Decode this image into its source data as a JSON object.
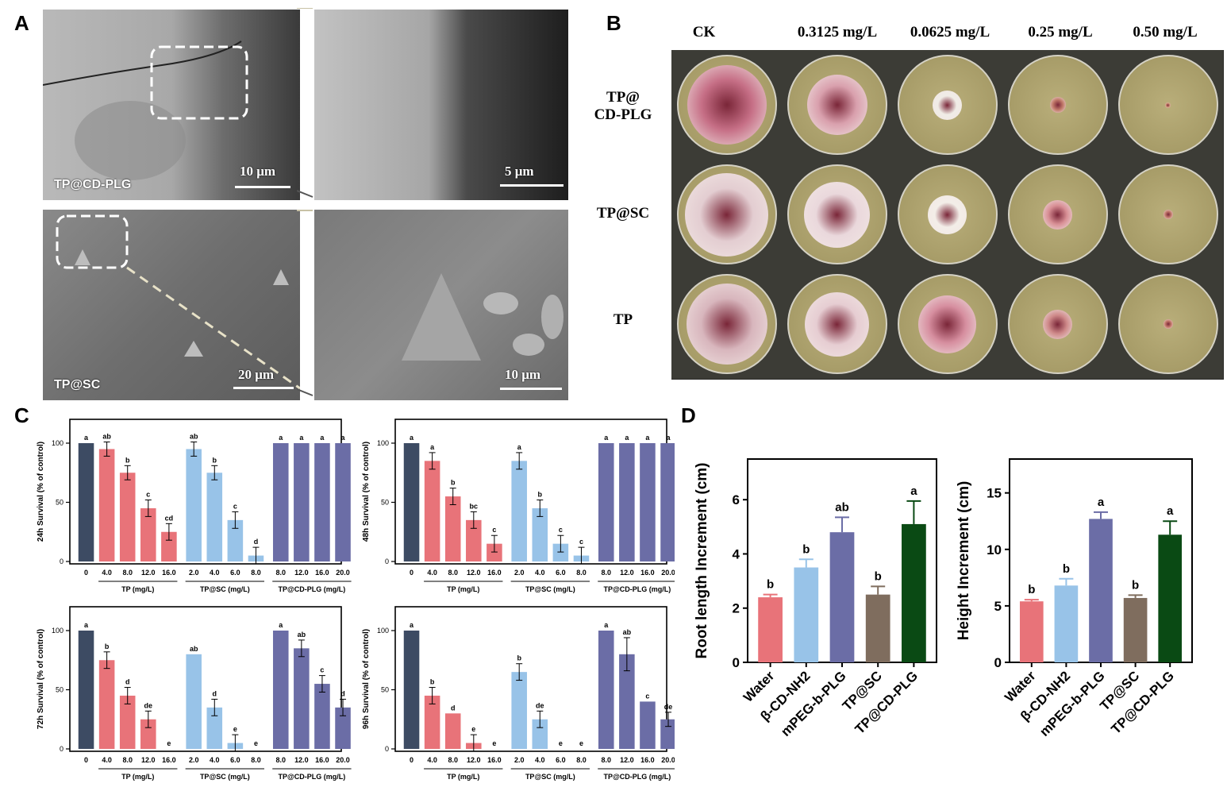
{
  "panels": {
    "a": "A",
    "b": "B",
    "c": "C",
    "d": "D"
  },
  "panel_a": {
    "top_label": "TP@CD-PLG",
    "bottom_label": "TP@SC",
    "scale_top_left": "10 μm",
    "scale_top_right": "5 μm",
    "scale_bottom_left": "20 μm",
    "scale_bottom_right": "10 μm"
  },
  "panel_b": {
    "columns": [
      "CK",
      "0.3125 mg/L",
      "0.0625 mg/L",
      "0.25 mg/L",
      "0.50 mg/L"
    ],
    "rows": [
      {
        "line1": "TP@",
        "line2": "CD-PLG"
      },
      {
        "line1": "TP@SC",
        "line2": ""
      },
      {
        "line1": "TP",
        "line2": ""
      }
    ],
    "colony_diameters": [
      [
        0.82,
        0.62,
        0.3,
        0.16,
        0.06
      ],
      [
        0.86,
        0.68,
        0.4,
        0.3,
        0.1
      ],
      [
        0.84,
        0.66,
        0.6,
        0.3,
        0.1
      ]
    ],
    "colony_colors": [
      [
        "#c66f86",
        "#d9a0ad",
        "#f0ece6",
        "#c27a6a",
        "#c88a6e"
      ],
      [
        "#e3cdd1",
        "#ead8dc",
        "#f3eee8",
        "#d88f95",
        "#c37d6e"
      ],
      [
        "#d8b6bd",
        "#e6cdd2",
        "#d68e9f",
        "#cf8a8a",
        "#c47a6b"
      ]
    ]
  },
  "panel_c": {
    "colors": {
      "control": "#3d4b63",
      "tp": "#e87379",
      "sc": "#98c3e8",
      "cdplg": "#6b6da6"
    },
    "group_labels": [
      "TP (mg/L)",
      "TP@SC (mg/L)",
      "TP@CD-PLG (mg/L)"
    ],
    "tick_labels": [
      "0",
      "4.0",
      "8.0",
      "12.0",
      "16.0",
      "2.0",
      "4.0",
      "6.0",
      "8.0",
      "8.0",
      "12.0",
      "16.0",
      "20.0"
    ],
    "plots": [
      {
        "ylabel": "24h Survival (% of control)",
        "values": [
          100,
          95,
          75,
          45,
          25,
          95,
          75,
          35,
          5,
          100,
          100,
          100,
          100
        ],
        "errors": [
          0,
          6,
          6,
          7,
          7,
          6,
          6,
          7,
          7,
          0,
          0,
          0,
          0
        ],
        "letters": [
          "a",
          "ab",
          "b",
          "c",
          "cd",
          "ab",
          "b",
          "c",
          "d",
          "a",
          "a",
          "a",
          "a"
        ]
      },
      {
        "ylabel": "48h Survival (% of control)",
        "values": [
          100,
          85,
          55,
          35,
          15,
          85,
          45,
          15,
          5,
          100,
          100,
          100,
          100
        ],
        "errors": [
          0,
          7,
          7,
          7,
          7,
          7,
          7,
          7,
          7,
          0,
          0,
          0,
          0
        ],
        "letters": [
          "a",
          "a",
          "b",
          "bc",
          "c",
          "a",
          "b",
          "c",
          "c",
          "a",
          "a",
          "a",
          "a"
        ]
      },
      {
        "ylabel": "72h Survival (% of control)",
        "values": [
          100,
          75,
          45,
          25,
          0,
          80,
          35,
          5,
          0,
          100,
          85,
          55,
          35
        ],
        "errors": [
          0,
          7,
          7,
          7,
          0,
          0,
          7,
          7,
          0,
          0,
          7,
          7,
          7
        ],
        "letters": [
          "a",
          "b",
          "d",
          "de",
          "e",
          "ab",
          "d",
          "e",
          "e",
          "a",
          "ab",
          "c",
          "d"
        ]
      },
      {
        "ylabel": "96h Survival (% of control)",
        "values": [
          100,
          45,
          30,
          5,
          0,
          65,
          25,
          0,
          0,
          100,
          80,
          40,
          25
        ],
        "errors": [
          0,
          7,
          0,
          7,
          0,
          7,
          7,
          0,
          0,
          0,
          14,
          0,
          6
        ],
        "letters": [
          "a",
          "b",
          "d",
          "e",
          "e",
          "b",
          "de",
          "e",
          "e",
          "a",
          "ab",
          "c",
          "de"
        ]
      }
    ],
    "yticks": [
      "0",
      "50",
      "100"
    ]
  },
  "chart_data": [
    {
      "type": "bar",
      "ylabel": "Root length Increment (cm)",
      "categories": [
        "Water",
        "β-CD-NH2",
        "mPEG-b-PLG",
        "TP@SC",
        "TP@CD-PLG"
      ],
      "values": [
        2.4,
        3.5,
        4.8,
        2.5,
        5.1
      ],
      "errors": [
        0.1,
        0.3,
        0.55,
        0.3,
        0.85
      ],
      "letters": [
        "b",
        "b",
        "ab",
        "b",
        "a"
      ],
      "ylim": [
        0,
        7.5
      ],
      "yticks": [
        "0",
        "2",
        "4",
        "6"
      ],
      "colors": [
        "#e87379",
        "#98c3e8",
        "#6b6da6",
        "#7f6d5e",
        "#0a4a14"
      ]
    },
    {
      "type": "bar",
      "ylabel": "Height Increment (cm)",
      "categories": [
        "Water",
        "β-CD-NH2",
        "mPEG-b-PLG",
        "TP@SC",
        "TP@CD-PLG"
      ],
      "values": [
        5.4,
        6.8,
        12.7,
        5.7,
        11.3
      ],
      "errors": [
        0.15,
        0.6,
        0.6,
        0.25,
        1.2
      ],
      "letters": [
        "b",
        "b",
        "a",
        "b",
        "a"
      ],
      "ylim": [
        0,
        18
      ],
      "yticks": [
        "0",
        "5",
        "10",
        "15"
      ],
      "colors": [
        "#e87379",
        "#98c3e8",
        "#6b6da6",
        "#7f6d5e",
        "#0a4a14"
      ]
    }
  ]
}
